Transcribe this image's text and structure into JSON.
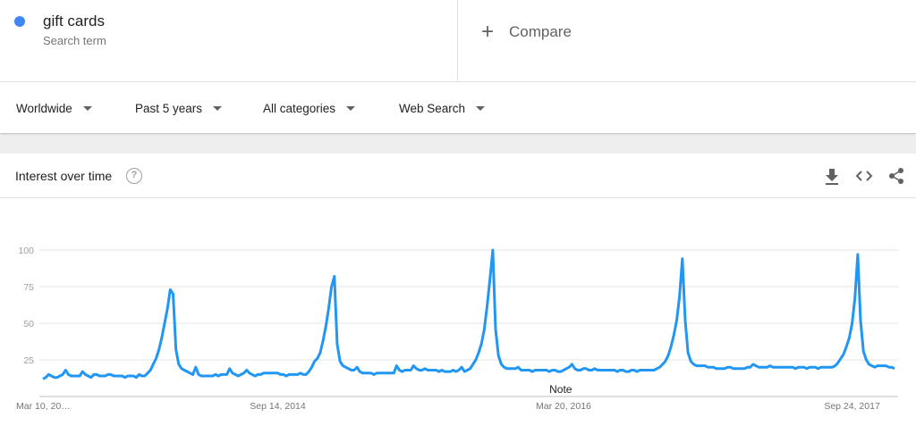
{
  "term": {
    "name": "gift cards",
    "type": "Search term",
    "color": "#4285f4"
  },
  "compare": {
    "label": "Compare"
  },
  "filters": {
    "region": "Worldwide",
    "time": "Past 5 years",
    "category": "All categories",
    "property": "Web Search"
  },
  "panel": {
    "title": "Interest over time",
    "help": "?",
    "icons": [
      "download-icon",
      "embed-code-icon",
      "share-icon"
    ]
  },
  "chart_data": {
    "type": "line",
    "title": "",
    "xlabel": "",
    "ylabel": "",
    "ylim": [
      0,
      100
    ],
    "yticks": [
      25,
      50,
      75,
      100
    ],
    "grid": true,
    "legend": "none",
    "line_color": "#2196f3",
    "note": "Note",
    "note_index": 183,
    "x_ticks": [
      {
        "index": 0,
        "label": "Mar 10, 20…"
      },
      {
        "index": 83,
        "label": "Sep 14, 2014"
      },
      {
        "index": 184,
        "label": "Mar 20, 2016"
      },
      {
        "index": 286,
        "label": "Sep 24, 2017"
      }
    ],
    "series": [
      {
        "values": [
          12,
          13,
          15,
          14,
          13,
          13,
          14,
          15,
          18,
          15,
          14,
          14,
          14,
          14,
          17,
          15,
          14,
          13,
          15,
          15,
          14,
          14,
          14,
          15,
          15,
          14,
          14,
          14,
          14,
          13,
          14,
          14,
          14,
          13,
          15,
          14,
          14,
          16,
          18,
          22,
          26,
          32,
          40,
          50,
          60,
          73,
          70,
          32,
          22,
          19,
          18,
          17,
          16,
          15,
          20,
          15,
          14,
          14,
          14,
          14,
          14,
          15,
          14,
          15,
          15,
          15,
          19,
          16,
          15,
          14,
          15,
          16,
          18,
          16,
          15,
          14,
          15,
          15,
          16,
          16,
          16,
          16,
          16,
          16,
          15,
          15,
          14,
          15,
          15,
          15,
          15,
          16,
          15,
          15,
          17,
          20,
          24,
          26,
          30,
          38,
          48,
          60,
          75,
          82,
          36,
          24,
          21,
          20,
          19,
          18,
          18,
          20,
          17,
          16,
          16,
          16,
          16,
          15,
          16,
          16,
          16,
          16,
          16,
          16,
          16,
          21,
          18,
          17,
          18,
          18,
          18,
          21,
          19,
          18,
          18,
          19,
          18,
          18,
          18,
          18,
          17,
          18,
          17,
          17,
          17,
          18,
          17,
          18,
          20,
          17,
          18,
          19,
          22,
          25,
          30,
          36,
          46,
          62,
          80,
          100,
          46,
          28,
          22,
          20,
          19,
          19,
          19,
          19,
          20,
          18,
          18,
          18,
          18,
          17,
          18,
          18,
          18,
          18,
          18,
          17,
          18,
          18,
          17,
          17,
          18,
          19,
          20,
          22,
          19,
          18,
          18,
          19,
          19,
          18,
          18,
          19,
          18,
          18,
          18,
          18,
          18,
          18,
          18,
          17,
          18,
          18,
          17,
          17,
          18,
          18,
          17,
          18,
          18,
          18,
          18,
          18,
          18,
          19,
          20,
          22,
          24,
          28,
          34,
          42,
          52,
          68,
          94,
          52,
          30,
          24,
          22,
          21,
          21,
          21,
          21,
          20,
          20,
          20,
          19,
          19,
          19,
          19,
          20,
          20,
          19,
          19,
          19,
          19,
          19,
          20,
          20,
          22,
          21,
          20,
          20,
          20,
          20,
          21,
          20,
          20,
          20,
          20,
          20,
          20,
          20,
          20,
          19,
          20,
          20,
          20,
          19,
          20,
          20,
          20,
          19,
          20,
          20,
          20,
          20,
          20,
          21,
          23,
          26,
          29,
          34,
          40,
          50,
          67,
          97,
          52,
          31,
          25,
          22,
          21,
          20,
          21,
          21,
          21,
          21,
          20,
          20,
          19
        ]
      }
    ]
  }
}
